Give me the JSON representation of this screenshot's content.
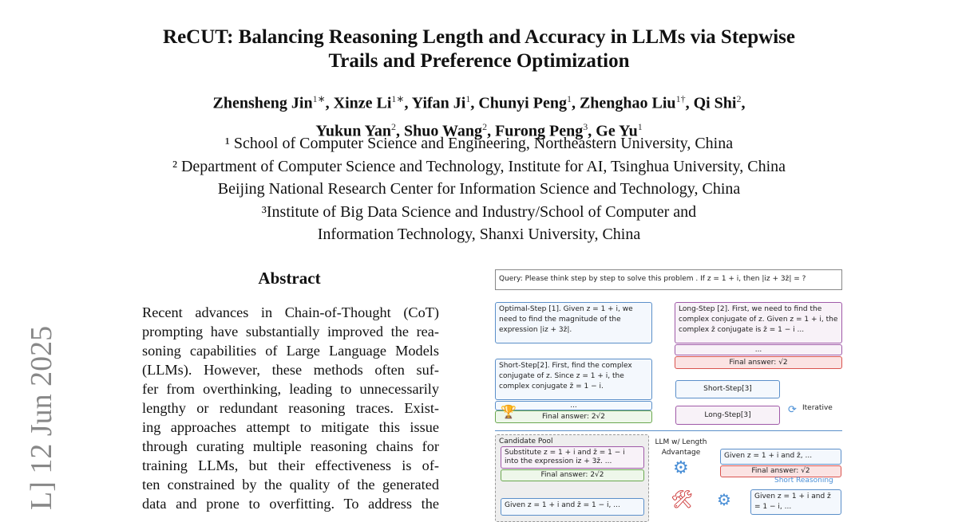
{
  "title_lines": [
    "ReCUT: Balancing Reasoning Length and Accuracy in LLMs via Stepwise",
    "Trails and Preference Optimization"
  ],
  "authors_lines": [
    [
      {
        "n": "Zhensheng Jin",
        "s": "1∗"
      },
      {
        "n": "Xinze Li",
        "s": "1∗"
      },
      {
        "n": "Yifan Ji",
        "s": "1"
      },
      {
        "n": "Chunyi Peng",
        "s": "1"
      },
      {
        "n": "Zhenghao Liu",
        "s": "1†"
      },
      {
        "n": "Qi Shi",
        "s": "2"
      }
    ],
    [
      {
        "n": "Yukun Yan",
        "s": "2"
      },
      {
        "n": "Shuo Wang",
        "s": "2"
      },
      {
        "n": "Furong Peng",
        "s": "3"
      },
      {
        "n": "Ge Yu",
        "s": "1"
      }
    ]
  ],
  "affiliations": [
    "¹ School of Computer Science and Engineering, Northeastern University, China",
    "² Department of Computer Science and Technology, Institute for AI, Tsinghua University, China",
    "Beijing National Research Center for Information Science and Technology, China",
    "³Institute of Big Data Science and Industry/School of Computer and",
    "Information Technology, Shanxi University, China"
  ],
  "arxiv_stamp": "L]  12 Jun 2025",
  "abstract_heading": "Abstract",
  "abstract_lines": [
    "Recent advances in Chain-of-Thought (CoT)",
    "prompting have substantially improved the rea-",
    "soning capabilities of Large Language Models",
    "(LLMs).  However, these methods often suf-",
    "fer from overthinking, leading to unnecessarily",
    "lengthy or redundant reasoning traces.  Exist-",
    "ing approaches attempt to mitigate this issue",
    "through curating multiple reasoning chains for",
    "training LLMs, but their effectiveness is of-",
    "ten constrained by the quality of the generated",
    "data and prone to overfitting.  To address the"
  ],
  "figure": {
    "query": "Query: Please think step by step to solve this problem . If z = 1 + i, then |iz + 3z̄| = ?",
    "optimal_step": "Optimal-Step [1]. Given z = 1 + i, we need to find the magnitude of the expression |iz + 3z̄|.",
    "long_step2": "Long-Step [2]. First, we need to find the complex conjugate of z. Given z = 1 + i, the complex z̄ conjugate is z̄ = 1 − i ...",
    "ellipsis": "...",
    "final_wrong": "Final answer: √2",
    "short_step2": "Short-Step[2]. First, find the complex conjugate of z. Since z = 1 + i, the complex conjugate z̄ = 1 − i.",
    "final_right": "Final answer: 2√2",
    "short_step3": "Short-Step[3]",
    "long_step3": "Long-Step[3]",
    "iterative": "Iterative",
    "candidate_pool": "Candidate Pool",
    "cand1": "Substitute z = 1 + i and z̄ = 1 − i into the expression iz + 3z̄. ...",
    "cand1_final": "Final answer: 2√2",
    "cand2": "Given z = 1 + i and z̄ = 1 − i, ...",
    "llm_label": "LLM w/ Length Advantage",
    "out1": "Given z = 1 + i and z̄, ...",
    "out1_final": "Final answer: √2",
    "short_reasoning": "Short Reasoning",
    "out2": "Given z = 1 + i and z̄ = 1 − i, ..."
  }
}
